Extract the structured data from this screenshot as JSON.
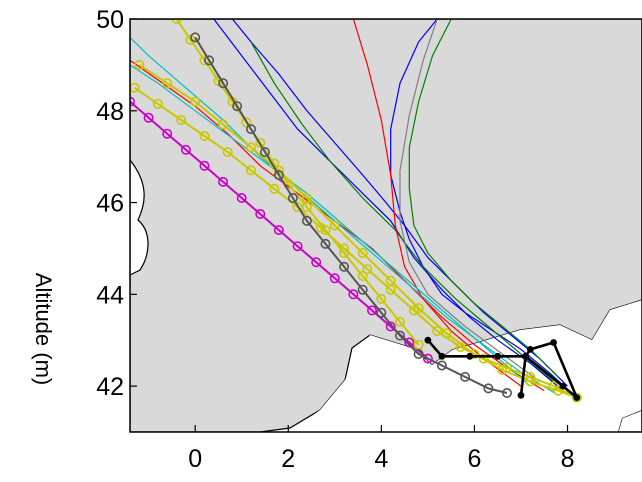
{
  "chart_data": {
    "type": "line",
    "xlabel": "",
    "ylabel": "Altitude (m)",
    "xlim": [
      -1.4,
      9.6
    ],
    "ylim": [
      41.0,
      50.0
    ],
    "xticks": [
      0,
      2,
      4,
      6,
      8
    ],
    "yticks": [
      42,
      44,
      46,
      48,
      50
    ],
    "grid": false,
    "background_land": "#d9d9d9",
    "background_sea": "#ffffff",
    "series": [
      {
        "color": "#0000ff",
        "marker": "none",
        "x": [
          8.2,
          7.6,
          7.0,
          6.4,
          5.8,
          5.3,
          4.9,
          4.6,
          4.4,
          4.2,
          4.2,
          4.4,
          4.8,
          5.2
        ],
        "y": [
          41.75,
          42.3,
          42.8,
          43.2,
          43.6,
          44.0,
          44.6,
          45.2,
          45.8,
          46.6,
          47.6,
          48.6,
          49.5,
          50.0
        ]
      },
      {
        "color": "#0000ff",
        "marker": "none",
        "x": [
          8.0,
          7.4,
          6.8,
          6.2,
          5.6,
          5.0,
          4.5,
          4.1,
          3.6,
          3.0,
          2.4,
          1.8,
          1.2,
          0.8
        ],
        "y": [
          42.0,
          42.6,
          43.1,
          43.6,
          44.2,
          44.8,
          45.5,
          46.0,
          46.6,
          47.3,
          48.0,
          48.8,
          49.5,
          50.0
        ]
      },
      {
        "color": "#0000ff",
        "marker": "none",
        "x": [
          7.9,
          7.2,
          6.5,
          5.9,
          5.3,
          4.7,
          4.2,
          3.6,
          2.9,
          2.2,
          1.6,
          1.0,
          0.4
        ],
        "y": [
          41.9,
          42.5,
          43.0,
          43.5,
          44.1,
          44.8,
          45.6,
          46.2,
          46.9,
          47.6,
          48.4,
          49.2,
          50.0
        ]
      },
      {
        "color": "#008000",
        "marker": "none",
        "x": [
          7.8,
          7.2,
          6.6,
          6.0,
          5.5,
          5.0,
          4.7,
          4.6,
          4.6,
          4.8,
          5.1,
          5.5
        ],
        "y": [
          42.2,
          42.8,
          43.3,
          43.8,
          44.3,
          44.9,
          45.5,
          46.3,
          47.2,
          48.2,
          49.2,
          50.0
        ]
      },
      {
        "color": "#008000",
        "marker": "none",
        "x": [
          7.7,
          7.0,
          6.3,
          5.6,
          4.9,
          4.3,
          3.6,
          2.9,
          2.3,
          1.7,
          1.2
        ],
        "y": [
          42.1,
          42.7,
          43.3,
          43.9,
          44.6,
          45.4,
          46.1,
          46.9,
          47.7,
          48.6,
          49.5
        ]
      },
      {
        "color": "#ff0000",
        "marker": "none",
        "x": [
          7.0,
          6.2,
          5.5,
          4.9,
          4.5,
          4.3,
          4.2,
          4.0,
          3.7,
          3.4
        ],
        "y": [
          42.0,
          42.6,
          43.2,
          43.9,
          44.6,
          45.5,
          46.6,
          47.8,
          49.0,
          50.0
        ]
      },
      {
        "color": "#ff0000",
        "marker": "none",
        "x": [
          7.5,
          6.7,
          6.0,
          5.3,
          4.6,
          3.8,
          3.0,
          2.2,
          1.4,
          0.7,
          0.0,
          -0.7,
          -1.4
        ],
        "y": [
          41.9,
          42.4,
          42.9,
          43.5,
          44.2,
          45.0,
          45.6,
          46.2,
          46.8,
          47.5,
          48.1,
          48.6,
          49.1
        ]
      },
      {
        "color": "#00bfbf",
        "marker": "none",
        "x": [
          7.8,
          7.0,
          6.2,
          5.4,
          4.6,
          3.8,
          3.0,
          2.2,
          1.4,
          0.6,
          -0.2,
          -1.0,
          -1.4
        ],
        "y": [
          41.8,
          42.3,
          42.9,
          43.5,
          44.2,
          44.9,
          45.6,
          46.3,
          47.0,
          47.8,
          48.5,
          49.2,
          49.6
        ]
      },
      {
        "color": "#00bfbf",
        "marker": "none",
        "x": [
          7.2,
          6.4,
          5.6,
          4.8,
          4.0,
          3.2,
          2.4,
          1.6,
          0.8,
          0.0,
          -0.8,
          -1.4
        ],
        "y": [
          42.0,
          42.7,
          43.4,
          44.1,
          44.8,
          45.5,
          46.2,
          46.8,
          47.4,
          48.0,
          48.6,
          49.0
        ]
      },
      {
        "color": "#808080",
        "marker": "none",
        "x": [
          7.4,
          6.6,
          5.8,
          5.0,
          4.6,
          4.4,
          4.4,
          4.6,
          4.9,
          5.2
        ],
        "y": [
          42.1,
          42.7,
          43.3,
          44.0,
          44.7,
          45.6,
          46.7,
          47.9,
          49.1,
          50.0
        ]
      },
      {
        "color": "#cc00cc",
        "marker": "o",
        "x": [
          -1.4,
          -1.0,
          -0.6,
          -0.2,
          0.2,
          0.6,
          1.0,
          1.4,
          1.8,
          2.2,
          2.6,
          3.0,
          3.4,
          3.8,
          4.2,
          4.6,
          5.0
        ],
        "y": [
          48.2,
          47.85,
          47.5,
          47.15,
          46.8,
          46.45,
          46.1,
          45.75,
          45.4,
          45.05,
          44.7,
          44.35,
          44.0,
          43.65,
          43.3,
          42.95,
          42.6
        ]
      },
      {
        "color": "#c8c800",
        "marker": "o",
        "x": [
          -1.3,
          -0.8,
          -0.3,
          0.2,
          0.7,
          1.2,
          1.7,
          2.2,
          2.7,
          3.2,
          3.7,
          4.2,
          4.7,
          5.2,
          5.7,
          6.2,
          6.7,
          7.2,
          7.7,
          8.2
        ],
        "y": [
          48.5,
          48.15,
          47.8,
          47.45,
          47.1,
          46.7,
          46.3,
          45.9,
          45.45,
          45.0,
          44.55,
          44.1,
          43.65,
          43.2,
          42.85,
          42.6,
          42.4,
          42.2,
          42.0,
          41.75
        ]
      },
      {
        "color": "#c8c800",
        "marker": "o",
        "x": [
          -1.2,
          -0.6,
          0.0,
          0.6,
          1.2,
          1.8,
          2.4,
          3.0,
          3.6,
          4.2,
          4.8,
          5.4,
          6.0,
          6.6,
          7.2,
          7.8,
          8.2
        ],
        "y": [
          49.0,
          48.6,
          48.2,
          47.7,
          47.2,
          46.7,
          46.1,
          45.5,
          44.9,
          44.3,
          43.7,
          43.15,
          42.7,
          42.35,
          42.1,
          41.9,
          41.75
        ]
      },
      {
        "color": "#c8c800",
        "marker": "o",
        "x": [
          -0.4,
          -0.1,
          0.2,
          0.5,
          0.8,
          1.1,
          1.4,
          1.7,
          2.0,
          2.4,
          2.8,
          3.2,
          3.6,
          4.0,
          4.4,
          4.8
        ],
        "y": [
          50.0,
          49.55,
          49.1,
          48.65,
          48.2,
          47.75,
          47.3,
          46.85,
          46.4,
          45.9,
          45.4,
          44.9,
          44.4,
          43.9,
          43.4,
          42.9
        ]
      },
      {
        "color": "#555555",
        "marker": "o",
        "x": [
          0.0,
          0.3,
          0.6,
          0.9,
          1.2,
          1.5,
          1.8,
          2.1,
          2.4,
          2.8,
          3.2,
          3.6,
          4.0,
          4.4,
          4.8,
          5.3,
          5.8,
          6.3,
          6.7
        ],
        "y": [
          49.6,
          49.1,
          48.6,
          48.1,
          47.6,
          47.1,
          46.6,
          46.1,
          45.6,
          45.1,
          44.6,
          44.1,
          43.6,
          43.1,
          42.7,
          42.45,
          42.2,
          41.95,
          41.85
        ]
      },
      {
        "color": "#000000",
        "marker": "dot",
        "x": [
          5.0,
          5.3,
          5.9,
          6.5,
          7.1,
          7.2,
          7.7,
          8.2,
          7.9,
          7.1,
          7.0
        ],
        "y": [
          43.0,
          42.65,
          42.65,
          42.65,
          42.65,
          42.8,
          42.95,
          41.75,
          42.0,
          42.65,
          41.8
        ]
      }
    ]
  }
}
